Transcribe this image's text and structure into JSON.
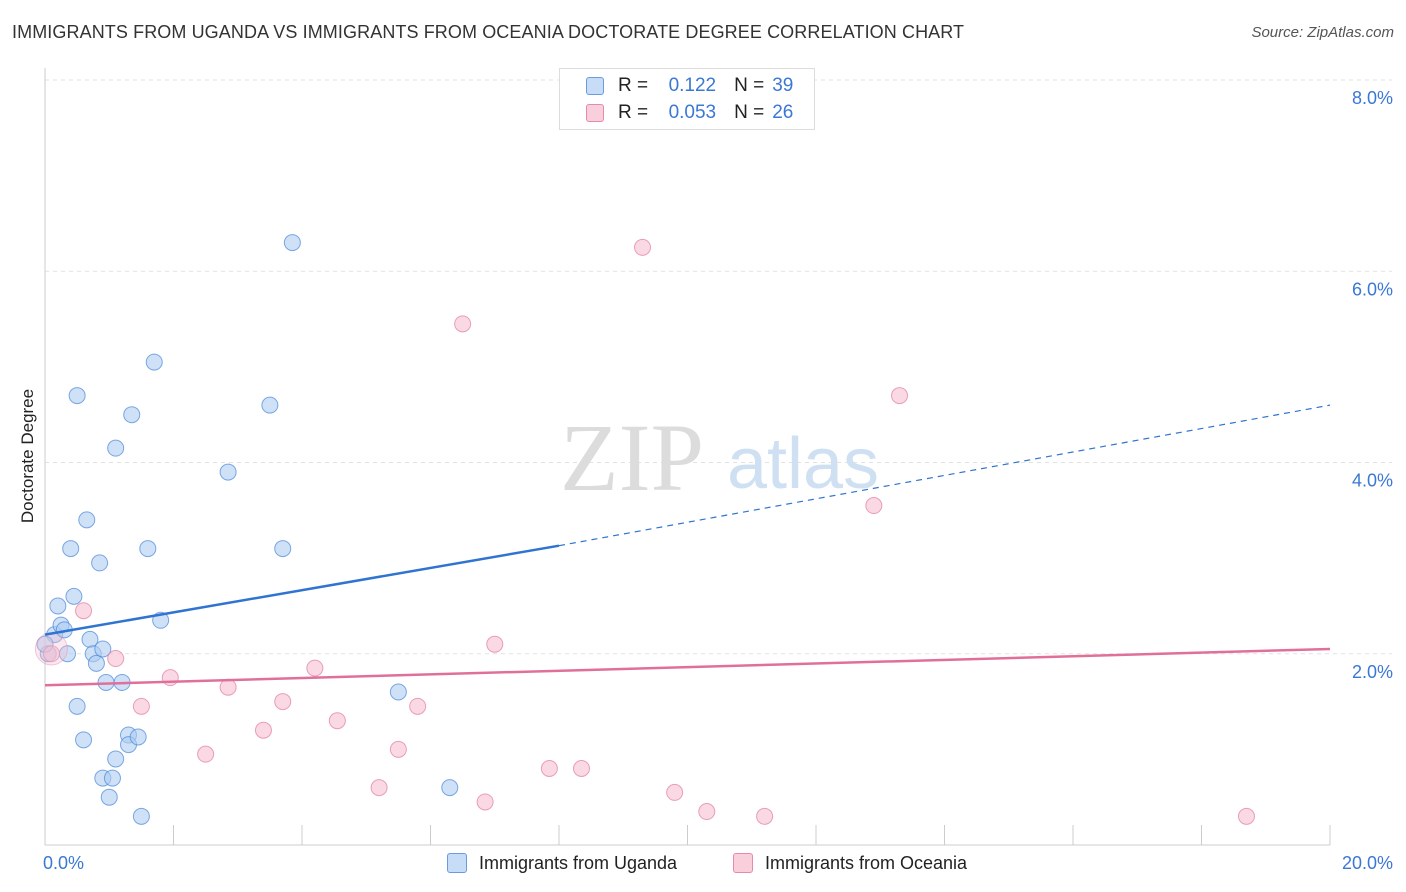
{
  "title": "IMMIGRANTS FROM UGANDA VS IMMIGRANTS FROM OCEANIA DOCTORATE DEGREE CORRELATION CHART",
  "source": "Source: ZipAtlas.com",
  "watermark": {
    "zip": "ZIP",
    "atlas": "atlas"
  },
  "legend": {
    "r_label": "R =",
    "n_label": "N =",
    "rows": [
      {
        "r": "0.122",
        "n": "39"
      },
      {
        "r": "0.053",
        "n": "26"
      }
    ]
  },
  "chart_data": {
    "type": "scatter",
    "title": "IMMIGRANTS FROM UGANDA VS IMMIGRANTS FROM OCEANIA DOCTORATE DEGREE CORRELATION CHART",
    "xlabel": "",
    "ylabel": "Doctorate Degree",
    "xlim": [
      0,
      20
    ],
    "ylim": [
      0,
      8
    ],
    "x_tick_labels": [
      "0.0%",
      "20.0%"
    ],
    "y_ticks": [
      {
        "value": 8,
        "label": "8.0%"
      },
      {
        "value": 6,
        "label": "6.0%"
      },
      {
        "value": 4,
        "label": "4.0%"
      },
      {
        "value": 2,
        "label": "2.0%"
      }
    ],
    "x_minor_ticks": [
      0,
      2,
      4,
      6,
      8,
      10,
      12,
      14,
      16,
      18,
      20
    ],
    "series": [
      {
        "name": "Immigrants from Uganda",
        "color": "#4a86d8",
        "fill": "#aecdf2",
        "R": 0.122,
        "N": 39,
        "trend": {
          "x0": 0,
          "y0": 2.2,
          "x1": 8,
          "y1": 3.13,
          "dash_to_x": 20,
          "dash_to_y": 4.6
        },
        "points": [
          [
            0.05,
            2.0
          ],
          [
            0.15,
            2.2
          ],
          [
            0.2,
            2.5
          ],
          [
            0.25,
            2.3
          ],
          [
            0.3,
            2.25
          ],
          [
            0.35,
            2.0
          ],
          [
            0.4,
            3.1
          ],
          [
            0.45,
            2.6
          ],
          [
            0.5,
            1.45
          ],
          [
            0.5,
            4.7
          ],
          [
            0.6,
            1.1
          ],
          [
            0.65,
            3.4
          ],
          [
            0.7,
            2.15
          ],
          [
            0.75,
            2.0
          ],
          [
            0.8,
            1.9
          ],
          [
            0.85,
            2.95
          ],
          [
            0.9,
            0.7
          ],
          [
            0.9,
            2.05
          ],
          [
            0.95,
            1.7
          ],
          [
            1.0,
            0.5
          ],
          [
            1.05,
            0.7
          ],
          [
            1.1,
            0.9
          ],
          [
            1.1,
            4.15
          ],
          [
            1.2,
            1.7
          ],
          [
            1.3,
            1.15
          ],
          [
            1.3,
            1.05
          ],
          [
            1.35,
            4.5
          ],
          [
            1.45,
            1.13
          ],
          [
            1.5,
            0.3
          ],
          [
            1.6,
            3.1
          ],
          [
            1.7,
            5.05
          ],
          [
            1.8,
            2.35
          ],
          [
            2.85,
            3.9
          ],
          [
            3.5,
            4.6
          ],
          [
            3.7,
            3.1
          ],
          [
            3.85,
            6.3
          ],
          [
            5.5,
            1.6
          ],
          [
            6.3,
            0.6
          ],
          [
            0.0,
            2.1
          ]
        ]
      },
      {
        "name": "Immigrants from Oceania",
        "color": "#e07ca0",
        "fill": "#f7c0d2",
        "R": 0.053,
        "N": 26,
        "trend": {
          "x0": 0,
          "y0": 1.67,
          "x1": 20,
          "y1": 2.05
        },
        "points": [
          [
            0.1,
            2.0
          ],
          [
            0.6,
            2.45
          ],
          [
            1.1,
            1.95
          ],
          [
            1.5,
            1.45
          ],
          [
            1.95,
            1.75
          ],
          [
            2.5,
            0.95
          ],
          [
            2.85,
            1.65
          ],
          [
            3.4,
            1.2
          ],
          [
            3.7,
            1.5
          ],
          [
            4.2,
            1.85
          ],
          [
            4.55,
            1.3
          ],
          [
            5.2,
            0.6
          ],
          [
            5.5,
            1.0
          ],
          [
            5.8,
            1.45
          ],
          [
            6.5,
            5.45
          ],
          [
            6.85,
            0.45
          ],
          [
            7.0,
            2.1
          ],
          [
            7.85,
            0.8
          ],
          [
            8.35,
            0.8
          ],
          [
            9.3,
            6.25
          ],
          [
            9.8,
            0.55
          ],
          [
            10.3,
            0.35
          ],
          [
            11.2,
            0.3
          ],
          [
            12.9,
            3.55
          ],
          [
            13.3,
            4.7
          ],
          [
            18.7,
            0.3
          ]
        ]
      }
    ]
  }
}
